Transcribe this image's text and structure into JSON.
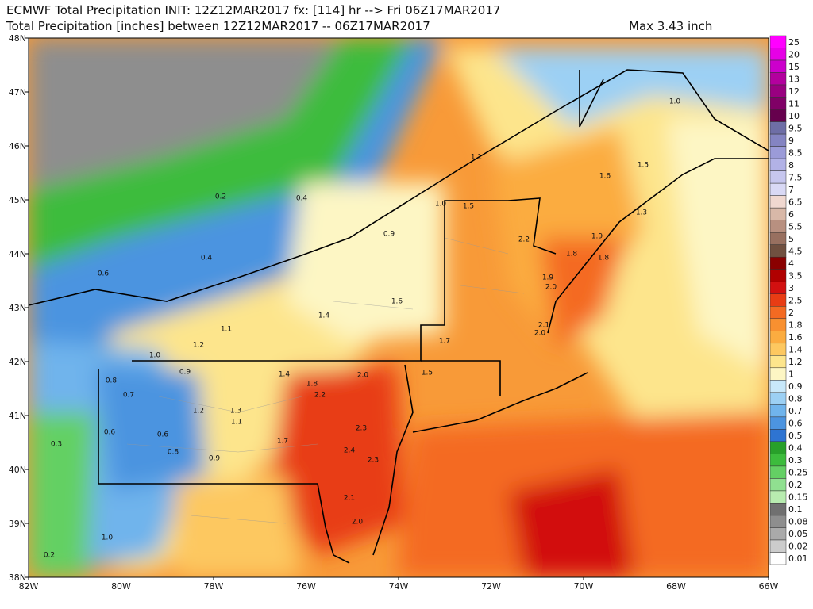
{
  "header": {
    "line1": "ECMWF Total Precipitation INIT: 12Z12MAR2017 fx: [114] hr --> Fri 06Z17MAR2017",
    "line2": "Total Precipitation [inches] between 12Z12MAR2017 -- 06Z17MAR2017",
    "max": "Max 3.43 inch"
  },
  "axes": {
    "lon_labels": [
      "82W",
      "80W",
      "78W",
      "76W",
      "74W",
      "72W",
      "70W",
      "68W",
      "66W"
    ],
    "lat_labels": [
      "48N",
      "47N",
      "46N",
      "45N",
      "44N",
      "43N",
      "42N",
      "41N",
      "40N",
      "39N",
      "38N"
    ]
  },
  "colorbar": {
    "levels": [
      25,
      20,
      15,
      13,
      12,
      11,
      10,
      9.5,
      9,
      8.5,
      8,
      7.5,
      7,
      6.5,
      6,
      5.5,
      5,
      4.5,
      4,
      3.5,
      3,
      2.5,
      2,
      1.8,
      1.6,
      1.4,
      1.2,
      1,
      0.9,
      0.8,
      0.7,
      0.6,
      0.5,
      0.4,
      0.3,
      0.25,
      0.2,
      0.15,
      0.1,
      0.08,
      0.05,
      0.02,
      0.01
    ],
    "colors": [
      "#ff00ff",
      "#e600e6",
      "#cc00cc",
      "#b3009e",
      "#990080",
      "#800066",
      "#66004d",
      "#6e6ea6",
      "#8484c2",
      "#9b9bd8",
      "#b2b2e6",
      "#c6c6ee",
      "#d9d9f5",
      "#f0d8d0",
      "#d8b8a8",
      "#b89080",
      "#987060",
      "#705040",
      "#8a0000",
      "#b00000",
      "#d21010",
      "#e83c14",
      "#f46a22",
      "#f89030",
      "#fbac40",
      "#fdc860",
      "#fde58c",
      "#fdf6c4",
      "#c8e8fa",
      "#9cd0f4",
      "#70b4ec",
      "#4c94e0",
      "#2e74d2",
      "#28a02a",
      "#3cbc3c",
      "#64d064",
      "#90e090",
      "#b8ecb0",
      "#707070",
      "#8e8e8e",
      "#aaaaaa",
      "#cccccc",
      "#ffffff"
    ]
  },
  "map_labels": [
    "0.2",
    "0.4",
    "0.4",
    "0.6",
    "0.9",
    "1.0",
    "1.5",
    "1.1",
    "1.0",
    "1.3",
    "1.5",
    "1.6",
    "1.9",
    "2.2",
    "1.8",
    "1.9",
    "2.0",
    "2.0",
    "1.8",
    "2.1",
    "1.4",
    "1.2",
    "1.1",
    "1.0",
    "0.9",
    "0.8",
    "0.7",
    "0.6",
    "0.6",
    "0.8",
    "1.4",
    "1.8",
    "2.0",
    "2.2",
    "2.3",
    "2.4",
    "2.3",
    "2.1",
    "2.0",
    "1.7",
    "1.3",
    "1.2",
    "1.6",
    "1.7",
    "1.5",
    "0.3",
    "0.2",
    "1.0",
    "0.9",
    "1.1"
  ]
}
